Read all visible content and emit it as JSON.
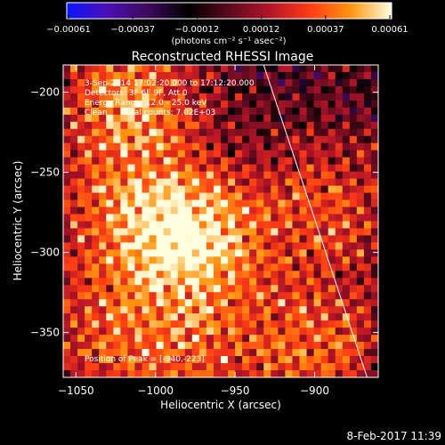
{
  "chart_data": {
    "type": "heatmap",
    "title": "Reconstructed RHESSI Image",
    "xlabel": "Heliocentric X (arcsec)",
    "ylabel": "Heliocentric Y (arcsec)",
    "xlim": [
      -1058,
      -860
    ],
    "ylim": [
      -378,
      -183
    ],
    "x_ticks": [
      -1050,
      -1000,
      -950,
      -900
    ],
    "x_tick_labels": [
      "−1050",
      "−1000",
      "−950",
      "−900"
    ],
    "y_ticks": [
      -200,
      -250,
      -300,
      -350
    ],
    "y_tick_labels": [
      "−200",
      "−250",
      "−300",
      "−350"
    ],
    "colorbar": {
      "min": -0.00061,
      "max": 0.00061,
      "tick_labels": [
        "−0.00061",
        "−0.00037",
        "−0.00012",
        "0.00012",
        "0.00037",
        "0.00061"
      ],
      "unit_label": "(photons cm⁻² s⁻¹ asec⁻²)",
      "colors": [
        "#0a14ff",
        "#4b0fb4",
        "#3c0a5a",
        "#000000",
        "#5a0a1e",
        "#b41428",
        "#ff3c14",
        "#ff9610",
        "#ffffe0"
      ]
    },
    "annotations": [
      "3-Sep-2014 17:02:20.000 to 17:12:20.000",
      "Detectors: 3F 6F 9F, Att 0",
      "Energy Range: 12.0 - 25.0 keV",
      "Clean      Total counts: 7.02E+03"
    ],
    "peak_label": "Position of Peak = [-940,-223]",
    "peak": [
      -940,
      -223
    ],
    "limb_line": [
      [
        -932,
        -183
      ],
      [
        -867,
        -378
      ]
    ],
    "grid": false
  },
  "footer": {
    "timestamp": "8-Feb-2017 11:39"
  }
}
